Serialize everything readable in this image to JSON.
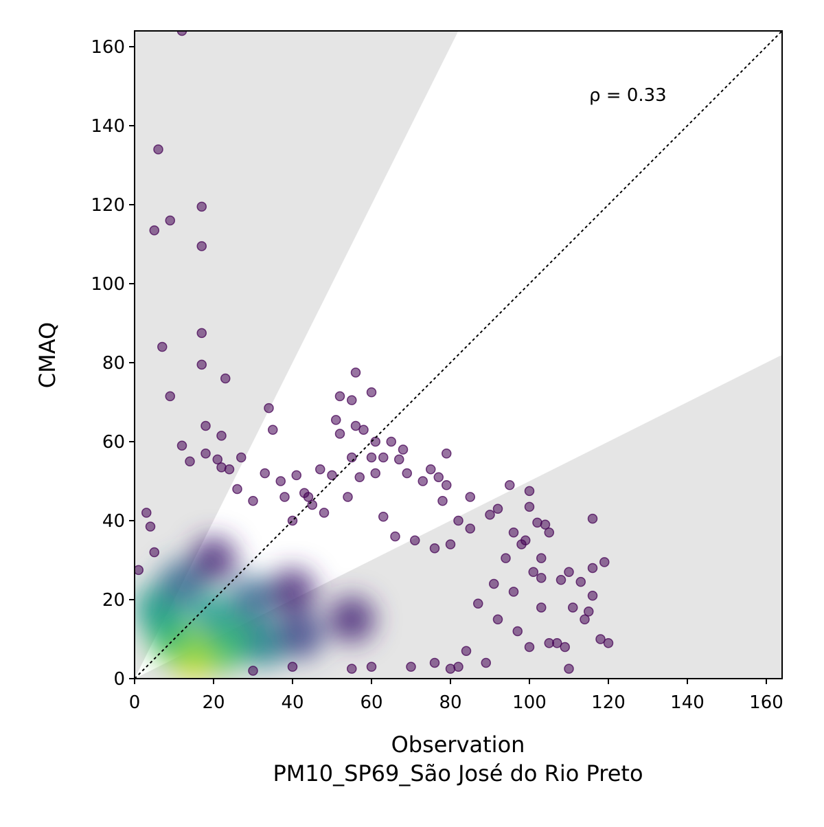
{
  "chart_data": {
    "type": "scatter",
    "title": "",
    "xlabel": "Observation",
    "xlabel_sub": "PM10_SP69_São José do Rio Preto",
    "ylabel": "CMAQ",
    "xlim": [
      0,
      164
    ],
    "ylim": [
      0,
      164
    ],
    "x_ticks": [
      0,
      20,
      40,
      60,
      80,
      100,
      120,
      140,
      160
    ],
    "y_ticks": [
      0,
      20,
      40,
      60,
      80,
      100,
      120,
      140,
      160
    ],
    "x_tick_labels": [
      "0",
      "20",
      "40",
      "60",
      "80",
      "100",
      "120",
      "140",
      "160"
    ],
    "y_tick_labels": [
      "0",
      "20",
      "40",
      "60",
      "80",
      "100",
      "120",
      "140",
      "160"
    ],
    "annotation": "ρ = 0.33",
    "reference_line": "1:1 (dotted)",
    "shaded_region": "outside factor-of-2 band (y > 2x and y < x/2)",
    "grid": false,
    "legend": "none",
    "colormap": "viridis (point density)",
    "colors": {
      "shade": "#e5e5e5",
      "low_density": "#440154",
      "high_density": "#fde725"
    },
    "points": [
      [
        12,
        164
      ],
      [
        6,
        134
      ],
      [
        17,
        119.5
      ],
      [
        9,
        116
      ],
      [
        5,
        113.5
      ],
      [
        17,
        109.5
      ],
      [
        17,
        87.5
      ],
      [
        7,
        84
      ],
      [
        17,
        79.5
      ],
      [
        23,
        76
      ],
      [
        9,
        71.5
      ],
      [
        34,
        68.5
      ],
      [
        56,
        77.5
      ],
      [
        52,
        71.5
      ],
      [
        55,
        70.5
      ],
      [
        60,
        72.5
      ],
      [
        18,
        64
      ],
      [
        22,
        61.5
      ],
      [
        35,
        63
      ],
      [
        51,
        65.5
      ],
      [
        52,
        62
      ],
      [
        56,
        64
      ],
      [
        58,
        63
      ],
      [
        12,
        59
      ],
      [
        61,
        60
      ],
      [
        65,
        60
      ],
      [
        68,
        58
      ],
      [
        79,
        57
      ],
      [
        27,
        56
      ],
      [
        18,
        57
      ],
      [
        21,
        55.5
      ],
      [
        14,
        55
      ],
      [
        55,
        56
      ],
      [
        60,
        56
      ],
      [
        63,
        56
      ],
      [
        67,
        55.5
      ],
      [
        22,
        53.5
      ],
      [
        24,
        53
      ],
      [
        33,
        52
      ],
      [
        37,
        50
      ],
      [
        41,
        51.5
      ],
      [
        47,
        53
      ],
      [
        50,
        51.5
      ],
      [
        57,
        51
      ],
      [
        61,
        52
      ],
      [
        69,
        52
      ],
      [
        75,
        53
      ],
      [
        77,
        51
      ],
      [
        79,
        49
      ],
      [
        73,
        50
      ],
      [
        78,
        45
      ],
      [
        85,
        46
      ],
      [
        95,
        49
      ],
      [
        100,
        47.5
      ],
      [
        100,
        43.5
      ],
      [
        92,
        43
      ],
      [
        90,
        41.5
      ],
      [
        82,
        40
      ],
      [
        85,
        38
      ],
      [
        96,
        37
      ],
      [
        102,
        39.5
      ],
      [
        104,
        39
      ],
      [
        105,
        37
      ],
      [
        116,
        40.5
      ],
      [
        99,
        35
      ],
      [
        94,
        30.5
      ],
      [
        103,
        30.5
      ],
      [
        101,
        27
      ],
      [
        98,
        34
      ],
      [
        110,
        27
      ],
      [
        116,
        28
      ],
      [
        119,
        29.5
      ],
      [
        113,
        24.5
      ],
      [
        103,
        25.5
      ],
      [
        116,
        21
      ],
      [
        115,
        17
      ],
      [
        111,
        18
      ],
      [
        114,
        15
      ],
      [
        118,
        10
      ],
      [
        120,
        9
      ],
      [
        103,
        18
      ],
      [
        108,
        25
      ],
      [
        96,
        22
      ],
      [
        91,
        24
      ],
      [
        100,
        8
      ],
      [
        105,
        9
      ],
      [
        110,
        2.5
      ],
      [
        89,
        4
      ],
      [
        84,
        7
      ],
      [
        80,
        2.5
      ],
      [
        82,
        3
      ],
      [
        76,
        4
      ],
      [
        70,
        3
      ],
      [
        60,
        3
      ],
      [
        55,
        2.5
      ],
      [
        40,
        3
      ],
      [
        30,
        2
      ],
      [
        107,
        9
      ],
      [
        109,
        8
      ],
      [
        97,
        12
      ],
      [
        92,
        15
      ],
      [
        87,
        19
      ],
      [
        45,
        44
      ],
      [
        43,
        47
      ],
      [
        38,
        46
      ],
      [
        30,
        45
      ],
      [
        26,
        48
      ],
      [
        44,
        46
      ],
      [
        48,
        42
      ],
      [
        40,
        40
      ],
      [
        54,
        46
      ],
      [
        63,
        41
      ],
      [
        66,
        36
      ],
      [
        71,
        35
      ],
      [
        76,
        33
      ],
      [
        80,
        34
      ],
      [
        4,
        38.5
      ],
      [
        3,
        42
      ],
      [
        1,
        27.5
      ],
      [
        5,
        32
      ]
    ],
    "density_blobs": [
      {
        "x": 15,
        "y": 5.5,
        "color": "#fde725"
      },
      {
        "x": 14,
        "y": 7,
        "color": "#b5de2b"
      },
      {
        "x": 10,
        "y": 9,
        "color": "#6ece58"
      },
      {
        "x": 22,
        "y": 7,
        "color": "#6ece58"
      },
      {
        "x": 8,
        "y": 13,
        "color": "#35b779"
      },
      {
        "x": 26,
        "y": 10,
        "color": "#35b779"
      },
      {
        "x": 6,
        "y": 18,
        "color": "#1f9e89"
      },
      {
        "x": 20,
        "y": 16,
        "color": "#1f9e89"
      },
      {
        "x": 33,
        "y": 9,
        "color": "#26828e"
      },
      {
        "x": 12,
        "y": 24,
        "color": "#31688e"
      },
      {
        "x": 30,
        "y": 20,
        "color": "#31688e"
      },
      {
        "x": 42,
        "y": 11,
        "color": "#3e4989"
      },
      {
        "x": 20,
        "y": 30,
        "color": "#482878"
      },
      {
        "x": 40,
        "y": 22,
        "color": "#482878"
      },
      {
        "x": 55,
        "y": 15,
        "color": "#482878"
      }
    ]
  }
}
